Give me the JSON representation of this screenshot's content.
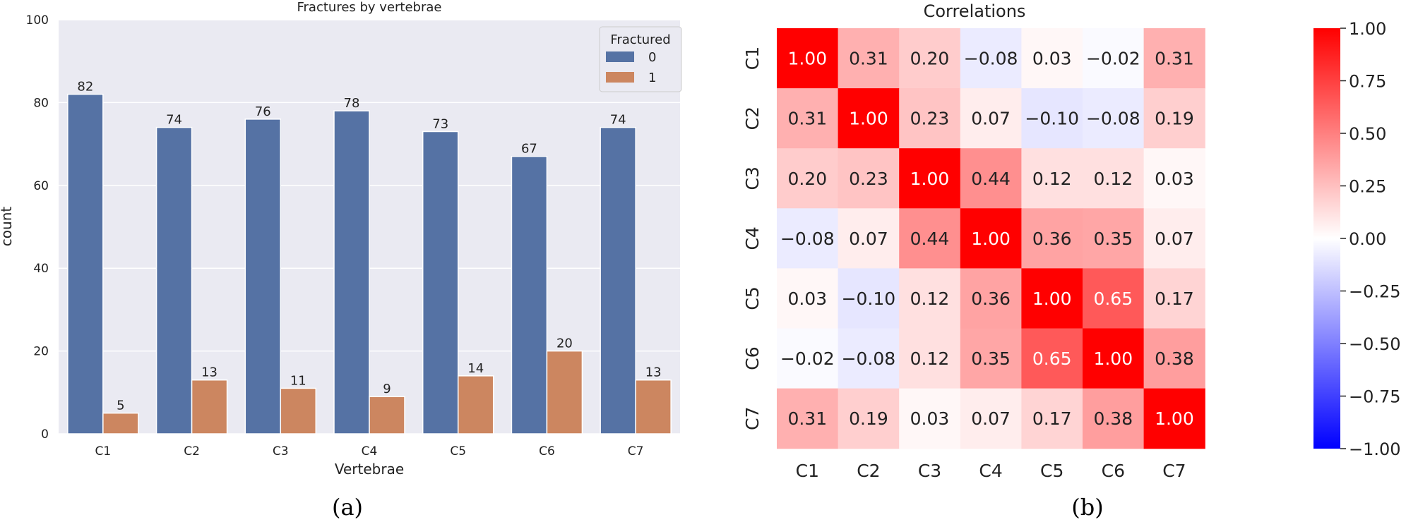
{
  "captions": {
    "left": "(a)",
    "right": "(b)"
  },
  "chart_data": [
    {
      "type": "bar",
      "title": "Fractures by vertebrae",
      "xlabel": "Vertebrae",
      "ylabel": "count",
      "ylim": [
        0,
        100
      ],
      "yticks": [
        0,
        20,
        40,
        60,
        80,
        100
      ],
      "categories": [
        "C1",
        "C2",
        "C3",
        "C4",
        "C5",
        "C6",
        "C7"
      ],
      "legend": {
        "title": "Fractured",
        "position": "top-right"
      },
      "grid": true,
      "series": [
        {
          "name": "0",
          "color": "#5572a4",
          "values": [
            82,
            74,
            76,
            78,
            73,
            67,
            74
          ]
        },
        {
          "name": "1",
          "color": "#cc8660",
          "values": [
            5,
            13,
            11,
            9,
            14,
            20,
            13
          ]
        }
      ]
    },
    {
      "type": "heatmap",
      "title": "Correlations",
      "rows": [
        "C1",
        "C2",
        "C3",
        "C4",
        "C5",
        "C6",
        "C7"
      ],
      "cols": [
        "C1",
        "C2",
        "C3",
        "C4",
        "C5",
        "C6",
        "C7"
      ],
      "values": [
        [
          1.0,
          0.31,
          0.2,
          -0.08,
          0.03,
          -0.02,
          0.31
        ],
        [
          0.31,
          1.0,
          0.23,
          0.07,
          -0.1,
          -0.08,
          0.19
        ],
        [
          0.2,
          0.23,
          1.0,
          0.44,
          0.12,
          0.12,
          0.03
        ],
        [
          -0.08,
          0.07,
          0.44,
          1.0,
          0.36,
          0.35,
          0.07
        ],
        [
          0.03,
          -0.1,
          0.12,
          0.36,
          1.0,
          0.65,
          0.17
        ],
        [
          -0.02,
          -0.08,
          0.12,
          0.35,
          0.65,
          1.0,
          0.38
        ],
        [
          0.31,
          0.19,
          0.03,
          0.07,
          0.17,
          0.38,
          1.0
        ]
      ],
      "colormap": "bwr",
      "vmin": -1.0,
      "vmax": 1.0,
      "colorbar_ticks": [
        "1.00",
        "0.75",
        "0.50",
        "0.25",
        "0.00",
        "−0.25",
        "−0.50",
        "−0.75",
        "−1.00"
      ]
    }
  ]
}
